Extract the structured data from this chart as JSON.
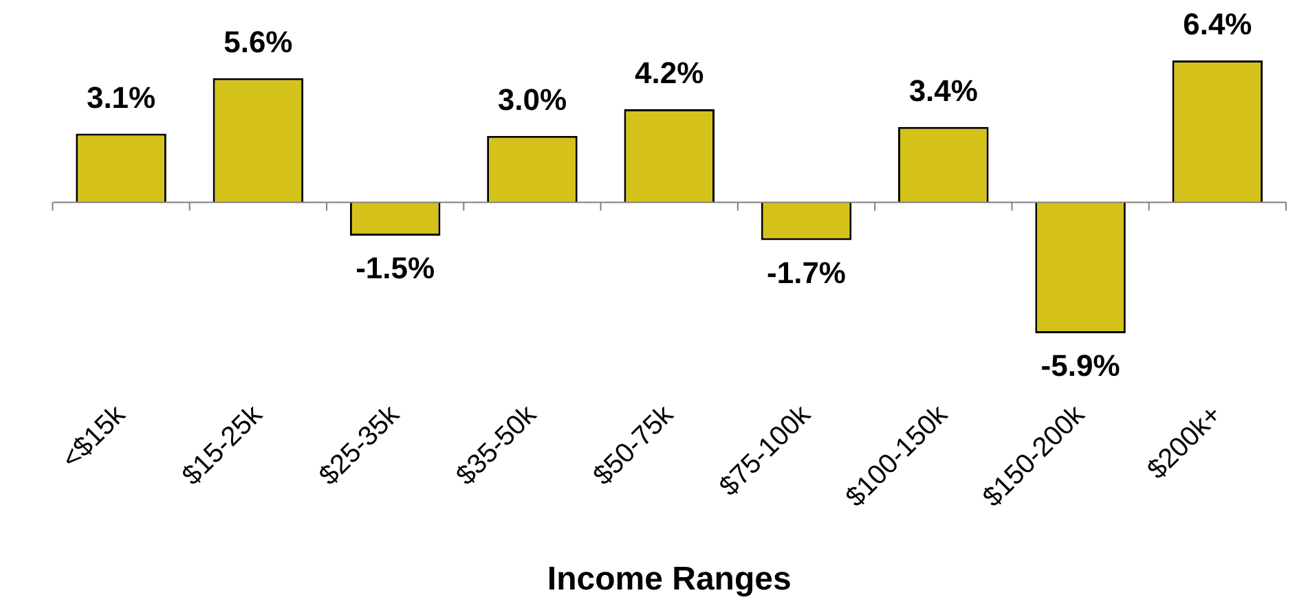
{
  "chart_data": {
    "type": "bar",
    "xlabel": "Income Ranges",
    "categories": [
      "<$15k",
      "$15-25k",
      "$25-35k",
      "$35-50k",
      "$50-75k",
      "$75-100k",
      "$100-150k",
      "$150-200k",
      "$200k+"
    ],
    "values": [
      3.1,
      5.6,
      -1.5,
      3.0,
      4.2,
      -1.7,
      3.4,
      -5.9,
      6.4
    ],
    "value_labels": [
      "3.1%",
      "5.6%",
      "-1.5%",
      "3.0%",
      "4.2%",
      "-1.7%",
      "3.4%",
      "-5.9%",
      "6.4%"
    ],
    "color": "#d4c21a",
    "grid": false,
    "legend": false
  }
}
